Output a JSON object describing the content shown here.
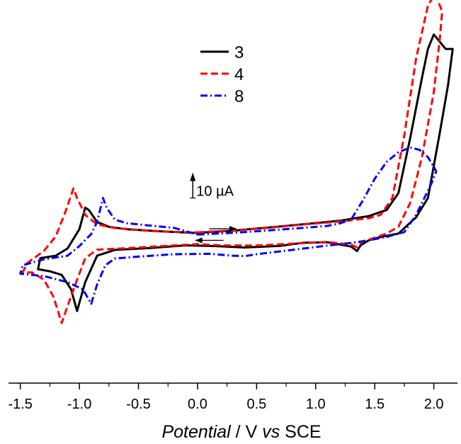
{
  "chart_data": {
    "type": "line",
    "title": "",
    "xlabel": {
      "italic": "Potential",
      "plain": " / V ",
      "italic2": "vs",
      "plain2": " SCE"
    },
    "ylabel": "",
    "xlim": [
      -1.6,
      2.2
    ],
    "ylim": [
      -63,
      94
    ],
    "xticks": [
      -1.5,
      -1.0,
      -0.5,
      0.0,
      0.5,
      1.0,
      1.5,
      2.0
    ],
    "xtick_labels": [
      "-1.5",
      "-1.0",
      "-0.5",
      "0.0",
      "0.5",
      "1.0",
      "1.5",
      "2.0"
    ],
    "grid": false,
    "legend_position": "top-center",
    "scale_bar": {
      "label": "10 µA",
      "value_uA": 10,
      "x": -0.04,
      "y_from": 14,
      "y_to": 24
    },
    "sweep_arrows": [
      {
        "direction": "right",
        "x_from": 0.1,
        "x_to": 0.33,
        "y": 1.2
      },
      {
        "direction": "left",
        "x_from": 0.22,
        "x_to": -0.02,
        "y": -3.6
      }
    ],
    "series": [
      {
        "name": "3",
        "color": "#000000",
        "dash": "solid",
        "points": [
          [
            0.0,
            -0.5
          ],
          [
            0.3,
            0.4
          ],
          [
            0.6,
            1.7
          ],
          [
            0.9,
            3.1
          ],
          [
            1.2,
            4.5
          ],
          [
            1.45,
            6.5
          ],
          [
            1.6,
            9
          ],
          [
            1.7,
            16
          ],
          [
            1.8,
            39
          ],
          [
            1.9,
            64
          ],
          [
            1.95,
            76
          ],
          [
            2.0,
            82
          ],
          [
            2.05,
            79
          ],
          [
            2.1,
            76
          ],
          [
            2.16,
            76
          ],
          [
            2.12,
            61
          ],
          [
            2.05,
            41
          ],
          [
            1.95,
            14
          ],
          [
            1.85,
            6
          ],
          [
            1.7,
            -0.8
          ],
          [
            1.55,
            -2.2
          ],
          [
            1.45,
            -3.6
          ],
          [
            1.38,
            -5.7
          ],
          [
            1.35,
            -8.1
          ],
          [
            1.3,
            -6.2
          ],
          [
            1.1,
            -4.4
          ],
          [
            0.9,
            -4.6
          ],
          [
            0.7,
            -5.9
          ],
          [
            0.4,
            -6.6
          ],
          [
            0.15,
            -6.0
          ],
          [
            -0.1,
            -5.7
          ],
          [
            -0.4,
            -6.8
          ],
          [
            -0.7,
            -7.6
          ],
          [
            -0.85,
            -10
          ],
          [
            -0.95,
            -21
          ],
          [
            -1.02,
            -33
          ],
          [
            -1.07,
            -24
          ],
          [
            -1.15,
            -18
          ],
          [
            -1.25,
            -16.5
          ],
          [
            -1.35,
            -15.6
          ],
          [
            -1.33,
            -11
          ],
          [
            -1.2,
            -10
          ],
          [
            -1.1,
            -7
          ],
          [
            -1.0,
            1
          ],
          [
            -0.95,
            10
          ],
          [
            -0.92,
            9
          ],
          [
            -0.85,
            4
          ],
          [
            -0.75,
            2
          ],
          [
            -0.6,
            1
          ],
          [
            -0.3,
            0.1
          ],
          [
            -0.05,
            -0.5
          ],
          [
            0.0,
            -0.5
          ]
        ]
      },
      {
        "name": "4",
        "color": "#ff0000",
        "dash": "dash",
        "points": [
          [
            0.0,
            -0.3
          ],
          [
            0.3,
            0.5
          ],
          [
            0.6,
            1.6
          ],
          [
            0.9,
            3.0
          ],
          [
            1.2,
            4.2
          ],
          [
            1.45,
            5.6
          ],
          [
            1.55,
            7
          ],
          [
            1.65,
            14
          ],
          [
            1.75,
            40
          ],
          [
            1.85,
            72
          ],
          [
            1.95,
            94
          ],
          [
            2.01,
            99
          ],
          [
            2.06,
            93
          ],
          [
            2.07,
            91
          ],
          [
            2.05,
            80
          ],
          [
            2.0,
            58
          ],
          [
            1.9,
            31
          ],
          [
            1.8,
            12
          ],
          [
            1.7,
            2
          ],
          [
            1.6,
            -0.8
          ],
          [
            1.5,
            -2.6
          ],
          [
            1.4,
            -4.0
          ],
          [
            1.35,
            -6.5
          ],
          [
            1.3,
            -5.4
          ],
          [
            1.1,
            -4.3
          ],
          [
            0.8,
            -5.0
          ],
          [
            0.5,
            -5.8
          ],
          [
            0.2,
            -5.7
          ],
          [
            0.0,
            -5.2
          ],
          [
            -0.3,
            -6.0
          ],
          [
            -0.6,
            -6.9
          ],
          [
            -0.85,
            -7.5
          ],
          [
            -0.95,
            -11
          ],
          [
            -1.05,
            -24
          ],
          [
            -1.15,
            -38
          ],
          [
            -1.22,
            -27
          ],
          [
            -1.3,
            -20
          ],
          [
            -1.4,
            -17
          ],
          [
            -1.48,
            -17
          ],
          [
            -1.44,
            -13
          ],
          [
            -1.3,
            -8
          ],
          [
            -1.2,
            -2
          ],
          [
            -1.12,
            8
          ],
          [
            -1.05,
            18
          ],
          [
            -1.02,
            14
          ],
          [
            -0.95,
            7
          ],
          [
            -0.85,
            3
          ],
          [
            -0.7,
            1.5
          ],
          [
            -0.4,
            0.3
          ],
          [
            -0.1,
            -0.3
          ],
          [
            0.0,
            -0.3
          ]
        ]
      },
      {
        "name": "8",
        "color": "#0000ff",
        "dash": "dashdot",
        "points": [
          [
            0.0,
            -1.2
          ],
          [
            0.3,
            -0.5
          ],
          [
            0.6,
            0.5
          ],
          [
            0.9,
            1.6
          ],
          [
            1.1,
            2.4
          ],
          [
            1.2,
            3.4
          ],
          [
            1.3,
            5
          ],
          [
            1.4,
            13
          ],
          [
            1.5,
            22
          ],
          [
            1.6,
            29
          ],
          [
            1.7,
            33
          ],
          [
            1.8,
            35
          ],
          [
            1.88,
            34
          ],
          [
            1.95,
            31
          ],
          [
            2.0,
            27
          ],
          [
            2.02,
            25
          ],
          [
            1.98,
            20
          ],
          [
            1.92,
            14
          ],
          [
            1.85,
            7
          ],
          [
            1.75,
            -0.2
          ],
          [
            1.6,
            -2.2
          ],
          [
            1.45,
            -3.6
          ],
          [
            1.3,
            -4.7
          ],
          [
            1.1,
            -5.8
          ],
          [
            0.9,
            -7.0
          ],
          [
            0.7,
            -8.2
          ],
          [
            0.5,
            -9.4
          ],
          [
            0.4,
            -10.2
          ],
          [
            0.3,
            -10
          ],
          [
            0.1,
            -9.2
          ],
          [
            -0.2,
            -9.4
          ],
          [
            -0.5,
            -10.4
          ],
          [
            -0.7,
            -11.2
          ],
          [
            -0.78,
            -14
          ],
          [
            -0.85,
            -22
          ],
          [
            -0.9,
            -30
          ],
          [
            -0.97,
            -24
          ],
          [
            -1.1,
            -21
          ],
          [
            -1.3,
            -18.5
          ],
          [
            -1.5,
            -17.5
          ],
          [
            -1.48,
            -14
          ],
          [
            -1.3,
            -11.5
          ],
          [
            -1.1,
            -10
          ],
          [
            -1.0,
            -6
          ],
          [
            -0.9,
            -1
          ],
          [
            -0.85,
            4
          ],
          [
            -0.8,
            14
          ],
          [
            -0.77,
            10
          ],
          [
            -0.7,
            5
          ],
          [
            -0.6,
            3.5
          ],
          [
            -0.4,
            2.5
          ],
          [
            -0.2,
            1.6
          ],
          [
            0.0,
            -1.2
          ]
        ]
      }
    ]
  }
}
